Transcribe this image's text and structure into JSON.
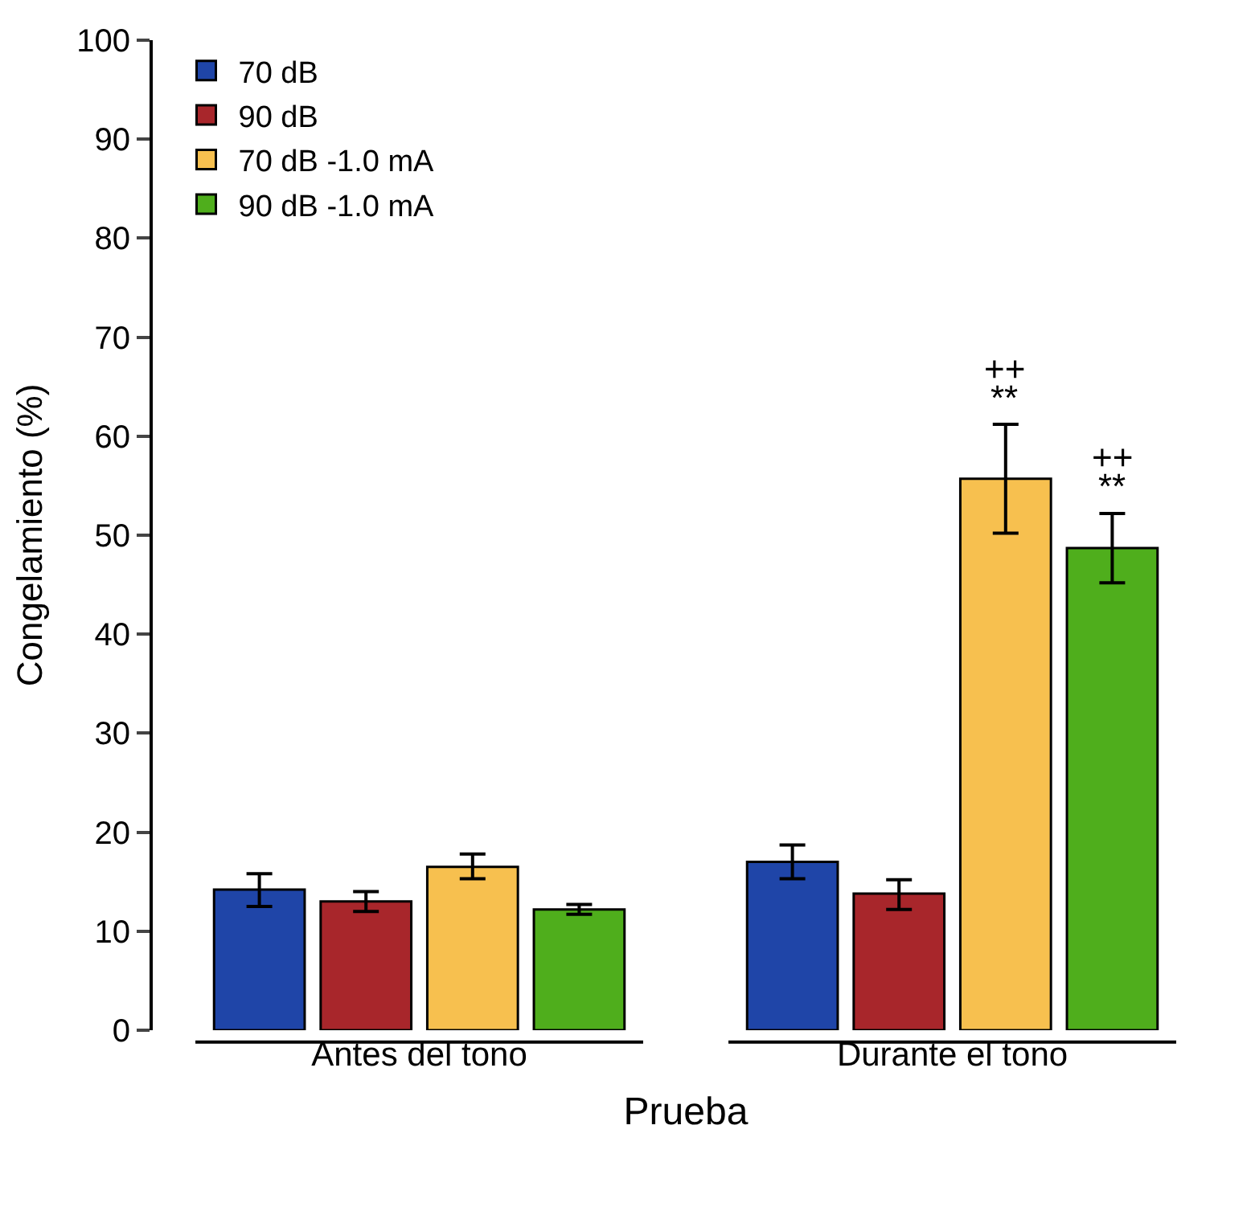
{
  "chart_data": {
    "type": "bar",
    "xlabel": "Prueba",
    "ylabel": "Congelamiento (%)",
    "categories": [
      "Antes del tono",
      "Durante el tono"
    ],
    "series": [
      {
        "name": "70 dB",
        "color": "#1f45a8",
        "values": [
          14.2,
          17.0
        ],
        "errors": [
          [
            12.5,
            15.8
          ],
          [
            15.3,
            18.7
          ]
        ]
      },
      {
        "name": "90 dB",
        "color": "#a8262b",
        "values": [
          13.0,
          13.8
        ],
        "errors": [
          [
            12.0,
            14.0
          ],
          [
            12.2,
            15.2
          ]
        ]
      },
      {
        "name": "70 dB -1.0 mA",
        "color": "#f7c04f",
        "values": [
          16.5,
          55.7
        ],
        "errors": [
          [
            15.3,
            17.8
          ],
          [
            50.2,
            61.2
          ]
        ]
      },
      {
        "name": "90 dB -1.0 mA",
        "color": "#4fae1c",
        "values": [
          12.2,
          48.7
        ],
        "errors": [
          [
            11.7,
            12.7
          ],
          [
            45.2,
            52.2
          ]
        ]
      }
    ],
    "ylim": [
      0,
      100
    ],
    "yticks": [
      0,
      10,
      20,
      30,
      40,
      50,
      60,
      70,
      80,
      90,
      100
    ],
    "legend": "top left",
    "annotations": [
      "++",
      "**",
      "++",
      "**"
    ]
  }
}
